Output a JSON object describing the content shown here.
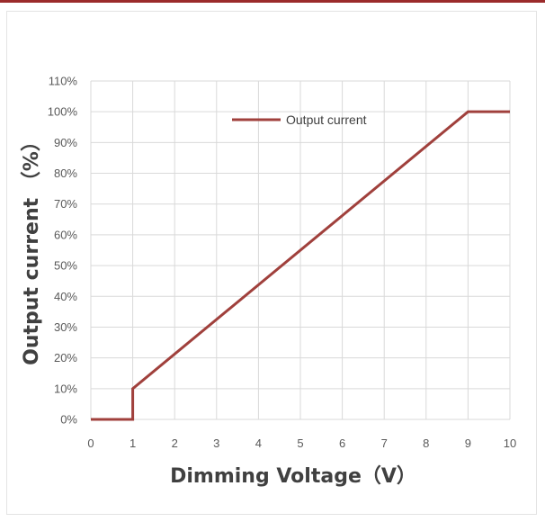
{
  "chart_data": {
    "type": "line",
    "title": "",
    "xlabel": "Dimming Voltage（V）",
    "ylabel": "Output current （%）",
    "xlim": [
      0,
      10
    ],
    "ylim": [
      0,
      110
    ],
    "x_ticks": [
      0,
      1,
      2,
      3,
      4,
      5,
      6,
      7,
      8,
      9,
      10
    ],
    "x_tick_labels": [
      "0",
      "1",
      "2",
      "3",
      "4",
      "5",
      "6",
      "7",
      "8",
      "9",
      "10"
    ],
    "y_ticks": [
      0,
      10,
      20,
      30,
      40,
      50,
      60,
      70,
      80,
      90,
      100,
      110
    ],
    "y_tick_labels": [
      "0%",
      "10%",
      "20%",
      "30%",
      "40%",
      "50%",
      "60%",
      "70%",
      "80%",
      "90%",
      "100%",
      "110%"
    ],
    "grid": true,
    "legend_position": "top-right",
    "series": [
      {
        "name": "Output current",
        "color": "#a0403c",
        "points": [
          [
            0,
            0
          ],
          [
            1,
            0
          ],
          [
            1,
            10
          ],
          [
            9,
            100
          ],
          [
            10,
            100
          ]
        ]
      }
    ]
  }
}
